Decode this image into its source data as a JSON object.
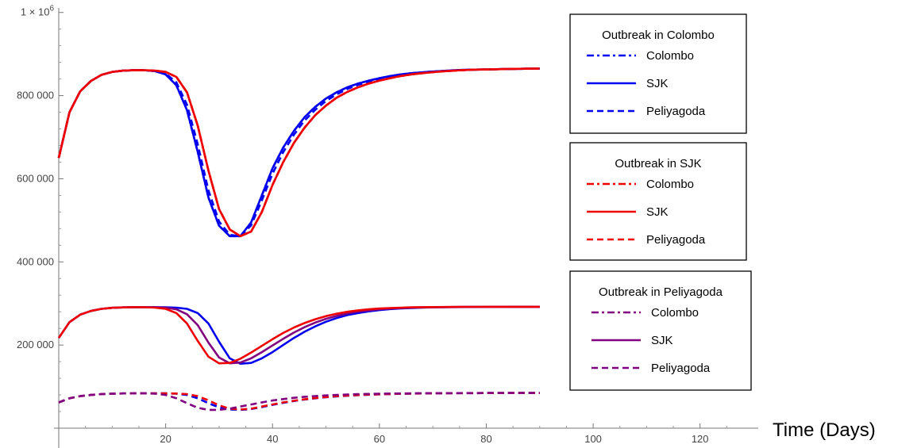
{
  "chart_data": {
    "type": "line",
    "xlabel": "Time (Days)",
    "ylabel": "",
    "xlim": [
      0,
      130
    ],
    "ylim": [
      0,
      1030000
    ],
    "x_ticks": [
      20,
      40,
      60,
      80,
      100,
      120
    ],
    "y_ticks": [
      {
        "value": 200000,
        "label": "200 000"
      },
      {
        "value": 400000,
        "label": "400 000"
      },
      {
        "value": 600000,
        "label": "600 000"
      },
      {
        "value": 800000,
        "label": "800 000"
      },
      {
        "value": 1000000,
        "label": "1 × 10",
        "sup": "6"
      }
    ],
    "colors": {
      "colombo_outbreak": "#0000ee",
      "sjk_outbreak": "#ee0000",
      "peliyagoda_outbreak": "#800080"
    },
    "x": [
      0,
      2,
      4,
      6,
      8,
      10,
      12,
      14,
      16,
      18,
      20,
      22,
      24,
      26,
      28,
      30,
      32,
      34,
      36,
      38,
      40,
      42,
      44,
      46,
      48,
      50,
      52,
      54,
      56,
      58,
      60,
      62,
      64,
      66,
      68,
      70,
      72,
      74,
      76,
      78,
      80,
      82,
      84,
      86,
      88,
      90
    ],
    "series": [
      {
        "group": "colombo_outbreak",
        "location": "colombo",
        "style": "dashdot",
        "values": [
          650000,
          760000,
          810000,
          835000,
          850000,
          857000,
          860000,
          861000,
          861000,
          859000,
          851000,
          825000,
          765000,
          665000,
          555000,
          487000,
          462000,
          462000,
          495000,
          560000,
          625000,
          675000,
          715000,
          748000,
          773000,
          793000,
          808000,
          820000,
          829000,
          836000,
          842000,
          847000,
          851000,
          854000,
          856000,
          858000,
          859500,
          861000,
          862000,
          862500,
          863000,
          863500,
          864000,
          864500,
          864800,
          865000
        ]
      },
      {
        "group": "colombo_outbreak",
        "location": "sjk",
        "style": "solid",
        "values": [
          650000,
          760000,
          810000,
          835000,
          850000,
          857000,
          860000,
          861000,
          861000,
          859000,
          851000,
          825000,
          765000,
          665000,
          555000,
          487000,
          462000,
          462000,
          495000,
          560000,
          625000,
          675000,
          715000,
          748000,
          773000,
          793000,
          808000,
          820000,
          829000,
          836000,
          842000,
          847000,
          851000,
          854000,
          856000,
          858000,
          859500,
          861000,
          862000,
          862500,
          863000,
          863500,
          864000,
          864500,
          864800,
          865000
        ]
      },
      {
        "group": "colombo_outbreak",
        "location": "peliyagoda",
        "style": "dashed",
        "values": [
          650000,
          760000,
          810000,
          835000,
          850000,
          857000,
          860000,
          861000,
          861000,
          859500,
          853000,
          832000,
          778000,
          683000,
          572000,
          497000,
          465000,
          462000,
          488000,
          548000,
          612000,
          664000,
          706000,
          740000,
          766000,
          787000,
          803000,
          816000,
          826000,
          834000,
          840000,
          845000,
          849500,
          853000,
          855500,
          857500,
          859000,
          860500,
          861500,
          862500,
          863000,
          863500,
          864000,
          864500,
          864800,
          865000
        ]
      },
      {
        "group": "sjk_outbreak",
        "location": "colombo",
        "style": "dashdot",
        "values": [
          650000,
          760000,
          810000,
          835000,
          850000,
          857000,
          860000,
          861000,
          861000,
          860000,
          857000,
          845000,
          808000,
          728000,
          620000,
          527000,
          478000,
          462000,
          473000,
          520000,
          585000,
          640000,
          686000,
          723000,
          753000,
          776000,
          795000,
          809000,
          820000,
          829000,
          836000,
          842000,
          847000,
          851000,
          854000,
          856500,
          858500,
          860000,
          861500,
          862500,
          863000,
          863500,
          864000,
          864500,
          864800,
          865000
        ]
      },
      {
        "group": "sjk_outbreak",
        "location": "sjk",
        "style": "solid",
        "values": [
          650000,
          760000,
          810000,
          835000,
          850000,
          857000,
          860000,
          861000,
          861000,
          860000,
          857000,
          845000,
          808000,
          728000,
          620000,
          527000,
          478000,
          462000,
          473000,
          520000,
          585000,
          640000,
          686000,
          723000,
          753000,
          776000,
          795000,
          809000,
          820000,
          829000,
          836000,
          842000,
          847000,
          851000,
          854000,
          856500,
          858500,
          860000,
          861500,
          862500,
          863000,
          863500,
          864000,
          864500,
          864800,
          865000
        ]
      },
      {
        "group": "sjk_outbreak",
        "location": "peliyagoda",
        "style": "dashed",
        "values": [
          650000,
          760000,
          810000,
          835000,
          850000,
          857000,
          860000,
          861000,
          861000,
          860000,
          857000,
          845000,
          808000,
          728000,
          620000,
          527000,
          478000,
          462000,
          473000,
          520000,
          585000,
          640000,
          686000,
          723000,
          753000,
          776000,
          795000,
          809000,
          820000,
          829000,
          836000,
          842000,
          847000,
          851000,
          854000,
          856500,
          858500,
          860000,
          861500,
          862500,
          863000,
          863500,
          864000,
          864500,
          864800,
          865000
        ]
      },
      {
        "group": "colombo_outbreak",
        "location": "sjk_pop",
        "style": "solid",
        "values": [
          217000,
          255000,
          273000,
          282000,
          287000,
          289500,
          290500,
          291000,
          291000,
          291000,
          290800,
          290000,
          287000,
          277000,
          252000,
          208000,
          168000,
          155000,
          157000,
          168000,
          183000,
          200000,
          217000,
          232000,
          245000,
          256000,
          265000,
          272000,
          277000,
          281000,
          284000,
          286500,
          288000,
          289200,
          290000,
          290600,
          291000,
          291300,
          291500,
          291700,
          291800,
          291900,
          292000,
          292000,
          292000,
          292000
        ]
      },
      {
        "group": "peliyagoda_outbreak",
        "location": "sjk_pop",
        "style": "solid",
        "values": [
          217000,
          255000,
          273000,
          282000,
          287000,
          289500,
          290500,
          291000,
          291000,
          290800,
          290000,
          286000,
          274000,
          248000,
          206000,
          170000,
          156000,
          158000,
          168000,
          183000,
          199000,
          215000,
          230000,
          243000,
          254000,
          263000,
          270000,
          276000,
          280500,
          283500,
          286000,
          287700,
          289000,
          290000,
          290600,
          291000,
          291300,
          291500,
          291700,
          291800,
          291900,
          292000,
          292000,
          292000,
          292000,
          292000
        ]
      },
      {
        "group": "sjk_outbreak",
        "location": "sjk_pop",
        "style": "solid",
        "values": [
          217000,
          255000,
          273000,
          282000,
          287000,
          289500,
          290500,
          291000,
          290800,
          290000,
          287000,
          277000,
          252000,
          210000,
          172000,
          156000,
          157000,
          167000,
          182000,
          198000,
          214000,
          229000,
          242000,
          253000,
          262000,
          269500,
          275500,
          280000,
          283500,
          286000,
          287800,
          289000,
          290000,
          290600,
          291000,
          291300,
          291500,
          291700,
          291800,
          291900,
          292000,
          292000,
          292000,
          292000,
          292000,
          292000
        ]
      },
      {
        "group": "colombo_outbreak",
        "location": "peliyagoda_pop",
        "style": "dashed",
        "values": [
          62000,
          72000,
          77000,
          80000,
          82000,
          83000,
          83500,
          83800,
          84000,
          84000,
          83800,
          83000,
          80000,
          72000,
          60000,
          50000,
          45000,
          44000,
          46000,
          51000,
          56000,
          61000,
          65500,
          69000,
          72000,
          74500,
          76500,
          78000,
          79500,
          80500,
          81500,
          82200,
          82800,
          83200,
          83500,
          83800,
          84000,
          84200,
          84300,
          84400,
          84500,
          84500,
          84600,
          84600,
          84600,
          84600
        ]
      },
      {
        "group": "sjk_outbreak",
        "location": "peliyagoda_pop",
        "style": "dashed",
        "values": [
          62000,
          72000,
          77000,
          80000,
          82000,
          83000,
          83500,
          83800,
          84000,
          84000,
          83800,
          83300,
          81800,
          77000,
          67000,
          55000,
          47000,
          45000,
          47000,
          52000,
          57000,
          62000,
          66000,
          69500,
          72500,
          75000,
          77000,
          78500,
          79800,
          80800,
          81600,
          82300,
          82900,
          83300,
          83600,
          83900,
          84100,
          84200,
          84300,
          84400,
          84500,
          84500,
          84600,
          84600,
          84600,
          84600
        ]
      },
      {
        "group": "peliyagoda_outbreak",
        "location": "peliyagoda_pop",
        "style": "dashed",
        "values": [
          62000,
          72000,
          77000,
          80000,
          82000,
          83000,
          83500,
          83800,
          83800,
          83000,
          80000,
          72000,
          60000,
          49000,
          44000,
          44000,
          47000,
          52000,
          57000,
          62000,
          66500,
          70000,
          73000,
          75500,
          77300,
          78800,
          80000,
          81000,
          81800,
          82400,
          82900,
          83300,
          83600,
          83900,
          84100,
          84200,
          84300,
          84400,
          84500,
          84500,
          84600,
          84600,
          84600,
          84600,
          84600,
          84600
        ]
      }
    ],
    "legends": [
      {
        "title": "Outbreak in Colombo",
        "color_key": "colombo_outbreak",
        "entries": [
          {
            "label": "Colombo",
            "style": "dashdot"
          },
          {
            "label": "SJK",
            "style": "solid"
          },
          {
            "label": "Peliyagoda",
            "style": "dashed"
          }
        ]
      },
      {
        "title": "Outbreak in SJK",
        "color_key": "sjk_outbreak",
        "entries": [
          {
            "label": "Colombo",
            "style": "dashdot"
          },
          {
            "label": "SJK",
            "style": "solid"
          },
          {
            "label": "Peliyagoda",
            "style": "dashed"
          }
        ]
      },
      {
        "title": "Outbreak in Peliyagoda",
        "color_key": "peliyagoda_outbreak",
        "entries": [
          {
            "label": "Colombo",
            "style": "dashdot"
          },
          {
            "label": "SJK",
            "style": "solid"
          },
          {
            "label": "Peliyagoda",
            "style": "dashed"
          }
        ]
      }
    ],
    "legend_placement": "right",
    "grid": false
  }
}
